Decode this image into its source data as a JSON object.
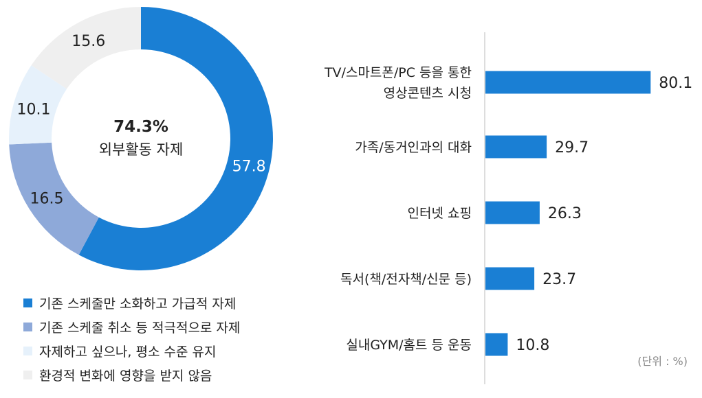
{
  "chart_data": [
    {
      "type": "donut",
      "center_value": "74.3%",
      "center_label": "외부활동 자제",
      "slices": [
        {
          "label": "기존 스케줄만 소화하고 가급적 자제",
          "value": 57.8,
          "value_label": "57.8",
          "color": "#1a7fd4",
          "label_color": "#ffffff"
        },
        {
          "label": "기존 스케줄 취소 등 적극적으로 자제",
          "value": 16.5,
          "value_label": "16.5",
          "color": "#8ea9d9",
          "label_color": "#222222"
        },
        {
          "label": "자제하고 싶으나, 평소 수준 유지",
          "value": 10.1,
          "value_label": "10.1",
          "color": "#e6f1fb",
          "label_color": "#222222"
        },
        {
          "label": "환경적 변화에 영향을 받지 않음",
          "value": 15.6,
          "value_label": "15.6",
          "color": "#efefef",
          "label_color": "#222222"
        }
      ]
    },
    {
      "type": "bar",
      "orientation": "horizontal",
      "unit_note": "(단위 : %)",
      "bar_color": "#1a7fd4",
      "categories": [
        [
          "TV/스마트폰/PC 등을 통한",
          "영상콘텐츠 시청"
        ],
        [
          "가족/동거인과의 대화"
        ],
        [
          "인터넷 쇼핑"
        ],
        [
          "독서(책/전자책/신문 등)"
        ],
        [
          "실내GYM/홈트 등 운동"
        ]
      ],
      "values": [
        80.1,
        29.7,
        26.3,
        23.7,
        10.8
      ],
      "value_labels": [
        "80.1",
        "29.7",
        "26.3",
        "23.7",
        "10.8"
      ],
      "xlim": [
        0,
        100
      ]
    }
  ]
}
